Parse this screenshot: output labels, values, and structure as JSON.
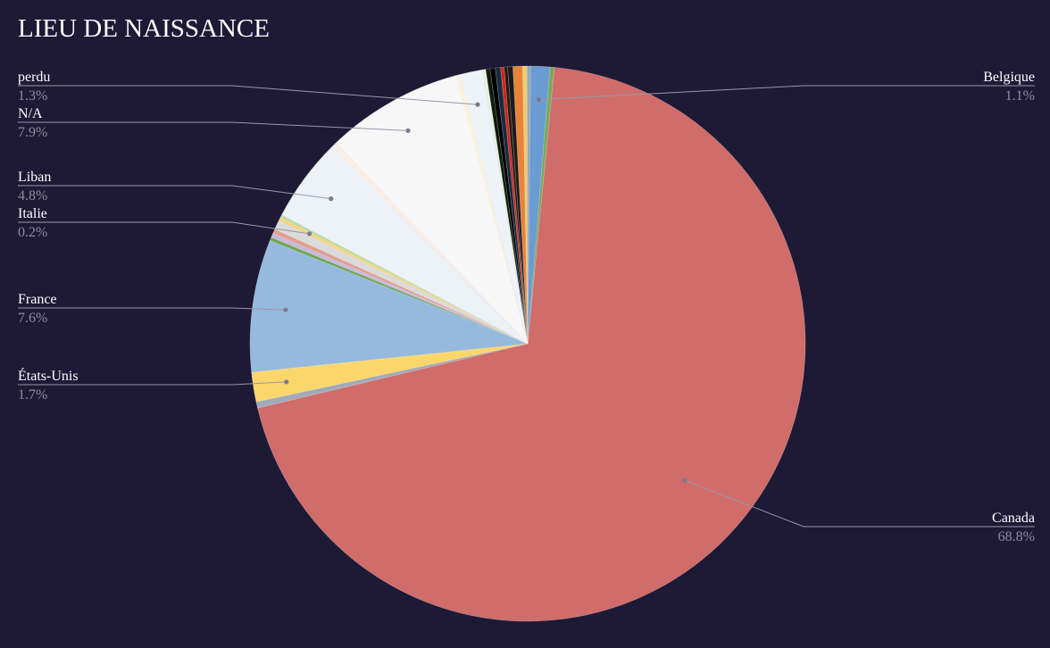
{
  "chart_data": {
    "type": "pie",
    "title": "LIEU DE NAISSANCE",
    "slices": [
      {
        "label": "Belgique",
        "value": 1.1,
        "color": "#6a9bd2",
        "pct_text": "1.1%"
      },
      {
        "label": "",
        "value": 0.25,
        "color": "#7aa95c"
      },
      {
        "label": "Canada",
        "value": 68.8,
        "color": "#d06c69",
        "pct_text": "68.8%"
      },
      {
        "label": "",
        "value": 0.35,
        "color": "#a0aab8"
      },
      {
        "label": "États-Unis",
        "value": 1.7,
        "color": "#fbd76b",
        "pct_text": "1.7%"
      },
      {
        "label": "France",
        "value": 7.6,
        "color": "#96bade",
        "pct_text": "7.6%"
      },
      {
        "label": "",
        "value": 0.2,
        "color": "#6fa653"
      },
      {
        "label": "",
        "value": 0.25,
        "color": "#c8b9dc"
      },
      {
        "label": "",
        "value": 0.25,
        "color": "#e1a090"
      },
      {
        "label": "",
        "value": 0.55,
        "color": "#dadada"
      },
      {
        "label": "Italie",
        "value": 0.2,
        "color": "#f7d57a",
        "pct_text": "0.2%"
      },
      {
        "label": "",
        "value": 0.15,
        "color": "#b8dca0"
      },
      {
        "label": "Liban",
        "value": 4.8,
        "color": "#edf2f9",
        "pct_text": "4.8%"
      },
      {
        "label": "",
        "value": 0.3,
        "color": "#fdeee4"
      },
      {
        "label": "N/A",
        "value": 7.9,
        "color": "#f7f7f7",
        "pct_text": "7.9%"
      },
      {
        "label": "",
        "value": 0.2,
        "color": "#fff3d6"
      },
      {
        "label": "perdu",
        "value": 1.3,
        "color": "#eef3fa",
        "pct_text": "1.3%"
      },
      {
        "label": "",
        "value": 0.2,
        "color": "#e6f0e1"
      },
      {
        "label": "",
        "value": 0.25,
        "color": "#0e1a0a"
      },
      {
        "label": "",
        "value": 0.3,
        "color": "#000000"
      },
      {
        "label": "",
        "value": 0.3,
        "color": "#1a2a3a"
      },
      {
        "label": "",
        "value": 0.2,
        "color": "#d0241c"
      },
      {
        "label": "",
        "value": 0.2,
        "color": "#2a1810"
      },
      {
        "label": "",
        "value": 0.3,
        "color": "#1b1b1b"
      },
      {
        "label": "",
        "value": 0.55,
        "color": "#e8833a"
      },
      {
        "label": "",
        "value": 0.25,
        "color": "#f2cb6b"
      },
      {
        "label": "",
        "value": 0.2,
        "color": "#97a7b8"
      }
    ],
    "start_angle_deg": 0.6,
    "direction": "clockwise",
    "legend": "none",
    "callout_labels": true
  }
}
